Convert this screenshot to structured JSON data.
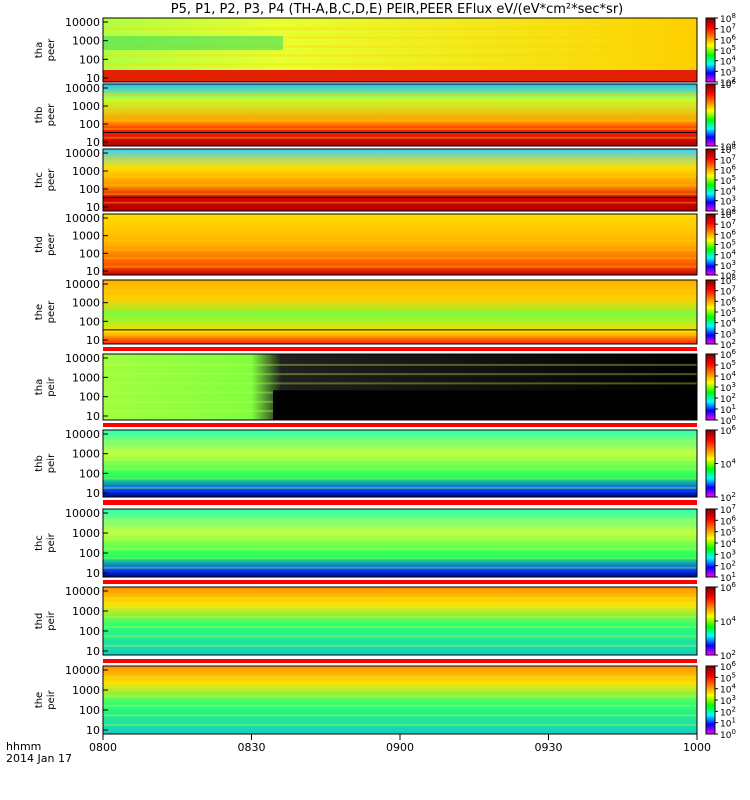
{
  "chart_data": {
    "type": "heatmap",
    "title": "P5, P1, P2, P3, P4 (TH-A,B,C,D,E) PEIR,PEER EFlux eV/(eV*cm²*sec*sr)",
    "x_label_line1": "hhmm",
    "x_label_line2": "2014 Jan 17",
    "x_ticks": [
      "0800",
      "0830",
      "0900",
      "0930",
      "1000"
    ],
    "y_ticks": [
      "10000",
      "1000",
      "100",
      "10"
    ],
    "panels": [
      {
        "name": "tha-peer",
        "ylabel_top": "tha",
        "ylabel_bottom": "peer",
        "cbar_min": 2,
        "cbar_max": 8
      },
      {
        "name": "thb-peer",
        "ylabel_top": "thb",
        "ylabel_bottom": "peer",
        "cbar_min": 4,
        "cbar_max": 6
      },
      {
        "name": "thc-peer",
        "ylabel_top": "thc",
        "ylabel_bottom": "peer",
        "cbar_min": 2,
        "cbar_max": 8
      },
      {
        "name": "thd-peer",
        "ylabel_top": "thd",
        "ylabel_bottom": "peer",
        "cbar_min": 2,
        "cbar_max": 8
      },
      {
        "name": "the-peer",
        "ylabel_top": "the",
        "ylabel_bottom": "peer",
        "cbar_min": 2,
        "cbar_max": 8
      },
      {
        "name": "tha-peir",
        "ylabel_top": "tha",
        "ylabel_bottom": "peir",
        "cbar_min": 0,
        "cbar_max": 6
      },
      {
        "name": "thb-peir",
        "ylabel_top": "thb",
        "ylabel_bottom": "peir",
        "cbar_min": 2,
        "cbar_max": 6
      },
      {
        "name": "thc-peir",
        "ylabel_top": "thc",
        "ylabel_bottom": "peir",
        "cbar_min": 1,
        "cbar_max": 7
      },
      {
        "name": "thd-peir",
        "ylabel_top": "thd",
        "ylabel_bottom": "peir",
        "cbar_min": 2,
        "cbar_max": 6
      },
      {
        "name": "the-peir",
        "ylabel_top": "the",
        "ylabel_bottom": "peir",
        "cbar_min": 0,
        "cbar_max": 6
      }
    ],
    "colorscale": [
      "#ff00ff",
      "#0000ff",
      "#00ffff",
      "#00ff00",
      "#ffff00",
      "#ff8000",
      "#ff0000",
      "#800000"
    ]
  }
}
